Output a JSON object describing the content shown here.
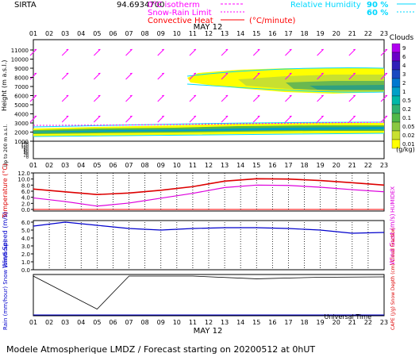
{
  "header": {
    "station": "SIRTA",
    "coords": "94.6934700",
    "legend": {
      "isotherm": "0°C isotherm",
      "snow_rain": "Snow-Rain Limit",
      "convective": "Convective Heat",
      "convective_unit": "(°C/minute)",
      "rh": "Relative Humidity",
      "rh90": "90 %",
      "rh60": "60 %"
    },
    "colors": {
      "isotherm": "#ff00ff",
      "snow_rain": "#ff00ff",
      "convective": "#ff0000",
      "rh": "#00d8ff"
    }
  },
  "footer": {
    "title": "Modele Atmospherique LMDZ / Forecast starting on 20200512 at 0hUT",
    "ut_label": "Universal Time"
  },
  "hours": [
    "01",
    "02",
    "03",
    "04",
    "05",
    "06",
    "07",
    "08",
    "09",
    "10",
    "11",
    "12",
    "13",
    "14",
    "15",
    "16",
    "17",
    "18",
    "19",
    "20",
    "21",
    "22",
    "23"
  ],
  "date_label": "MAY 12",
  "chart_data": [
    {
      "type": "heatmap",
      "name": "clouds",
      "ylabel": "Height (m a.s.l.)",
      "ylabel2": "Up to 200 m a.s.l.",
      "yticks_upper": [
        1000,
        2000,
        3000,
        4000,
        5000,
        6000,
        7000,
        8000,
        9000,
        10000,
        11000
      ],
      "yticks_lower": [
        140,
        120,
        100,
        80,
        60,
        40,
        20,
        0
      ],
      "colorbar": {
        "title": "Clouds",
        "unit": "(g/kg)",
        "labels": [
          "9",
          "6",
          "4",
          "3",
          "2",
          "1",
          "0.5",
          "0.2",
          "0.1",
          "0.05",
          "0.02",
          "0.01"
        ],
        "colors": [
          "#b000f0",
          "#6a00c8",
          "#3020b8",
          "#1848c0",
          "#0078d0",
          "#00a0c8",
          "#00b8a8",
          "#30b070",
          "#50b848",
          "#8ac840",
          "#c8e030",
          "#ffff00"
        ]
      },
      "layers": [
        {
          "name": "upper-cloud",
          "altitude_m": [
            7200,
            9000
          ],
          "hours": [
            11,
            23
          ],
          "peak_gkg": 0.2
        },
        {
          "name": "low-cloud",
          "altitude_m": [
            900,
            1600
          ],
          "hours": [
            1,
            23
          ],
          "peak_gkg": 0.5
        }
      ]
    },
    {
      "type": "line",
      "name": "temperature",
      "ylabel": "Temperature (°C)",
      "ylabel2": "HUMIDEX",
      "ylim": [
        0,
        12
      ],
      "yticks": [
        "0.0",
        "2.0",
        "4.0",
        "6.0",
        "8.0",
        "10.0",
        "12.0"
      ],
      "x": [
        1,
        3,
        5,
        7,
        9,
        11,
        13,
        15,
        17,
        19,
        21,
        23
      ],
      "series": [
        {
          "color": "#dd0000",
          "values": [
            6.7,
            5.8,
            4.9,
            5.4,
            6.3,
            7.5,
            9.3,
            10.1,
            10.0,
            9.5,
            8.8,
            8.0
          ]
        },
        {
          "color": "#dd00dd",
          "values": [
            3.8,
            2.6,
            1.1,
            2.1,
            3.7,
            5.3,
            7.2,
            8.0,
            7.9,
            7.3,
            6.5,
            5.8
          ]
        }
      ]
    },
    {
      "type": "line",
      "name": "wind",
      "ylabel": "Wind Speed (m/s)",
      "ylabel2": "Wind Gust (m/s)",
      "ylim": [
        0,
        6
      ],
      "yticks": [
        "0.0",
        "1.0",
        "2.0",
        "3.0",
        "4.0",
        "5.0",
        "6.0"
      ],
      "x": [
        1,
        3,
        5,
        7,
        9,
        11,
        13,
        15,
        17,
        19,
        21,
        23
      ],
      "series": [
        {
          "color": "#0000cc",
          "values": [
            5.5,
            6.0,
            5.6,
            5.2,
            5.0,
            5.2,
            5.3,
            5.3,
            5.2,
            5.0,
            4.6,
            4.7
          ]
        }
      ]
    },
    {
      "type": "line",
      "name": "precip",
      "ylabel": "Rain (mm/hour) Snow (cm/hour)",
      "ylabel2": "CAPE (J/g) Snow Depth (cm) Cloud Fraction",
      "x": [
        1,
        5,
        7,
        11,
        15,
        19,
        23
      ],
      "series": [
        {
          "color": "#000000",
          "values": [
            1.0,
            0.15,
            1.0,
            1.0,
            0.93,
            0.97,
            0.98
          ]
        }
      ]
    }
  ]
}
